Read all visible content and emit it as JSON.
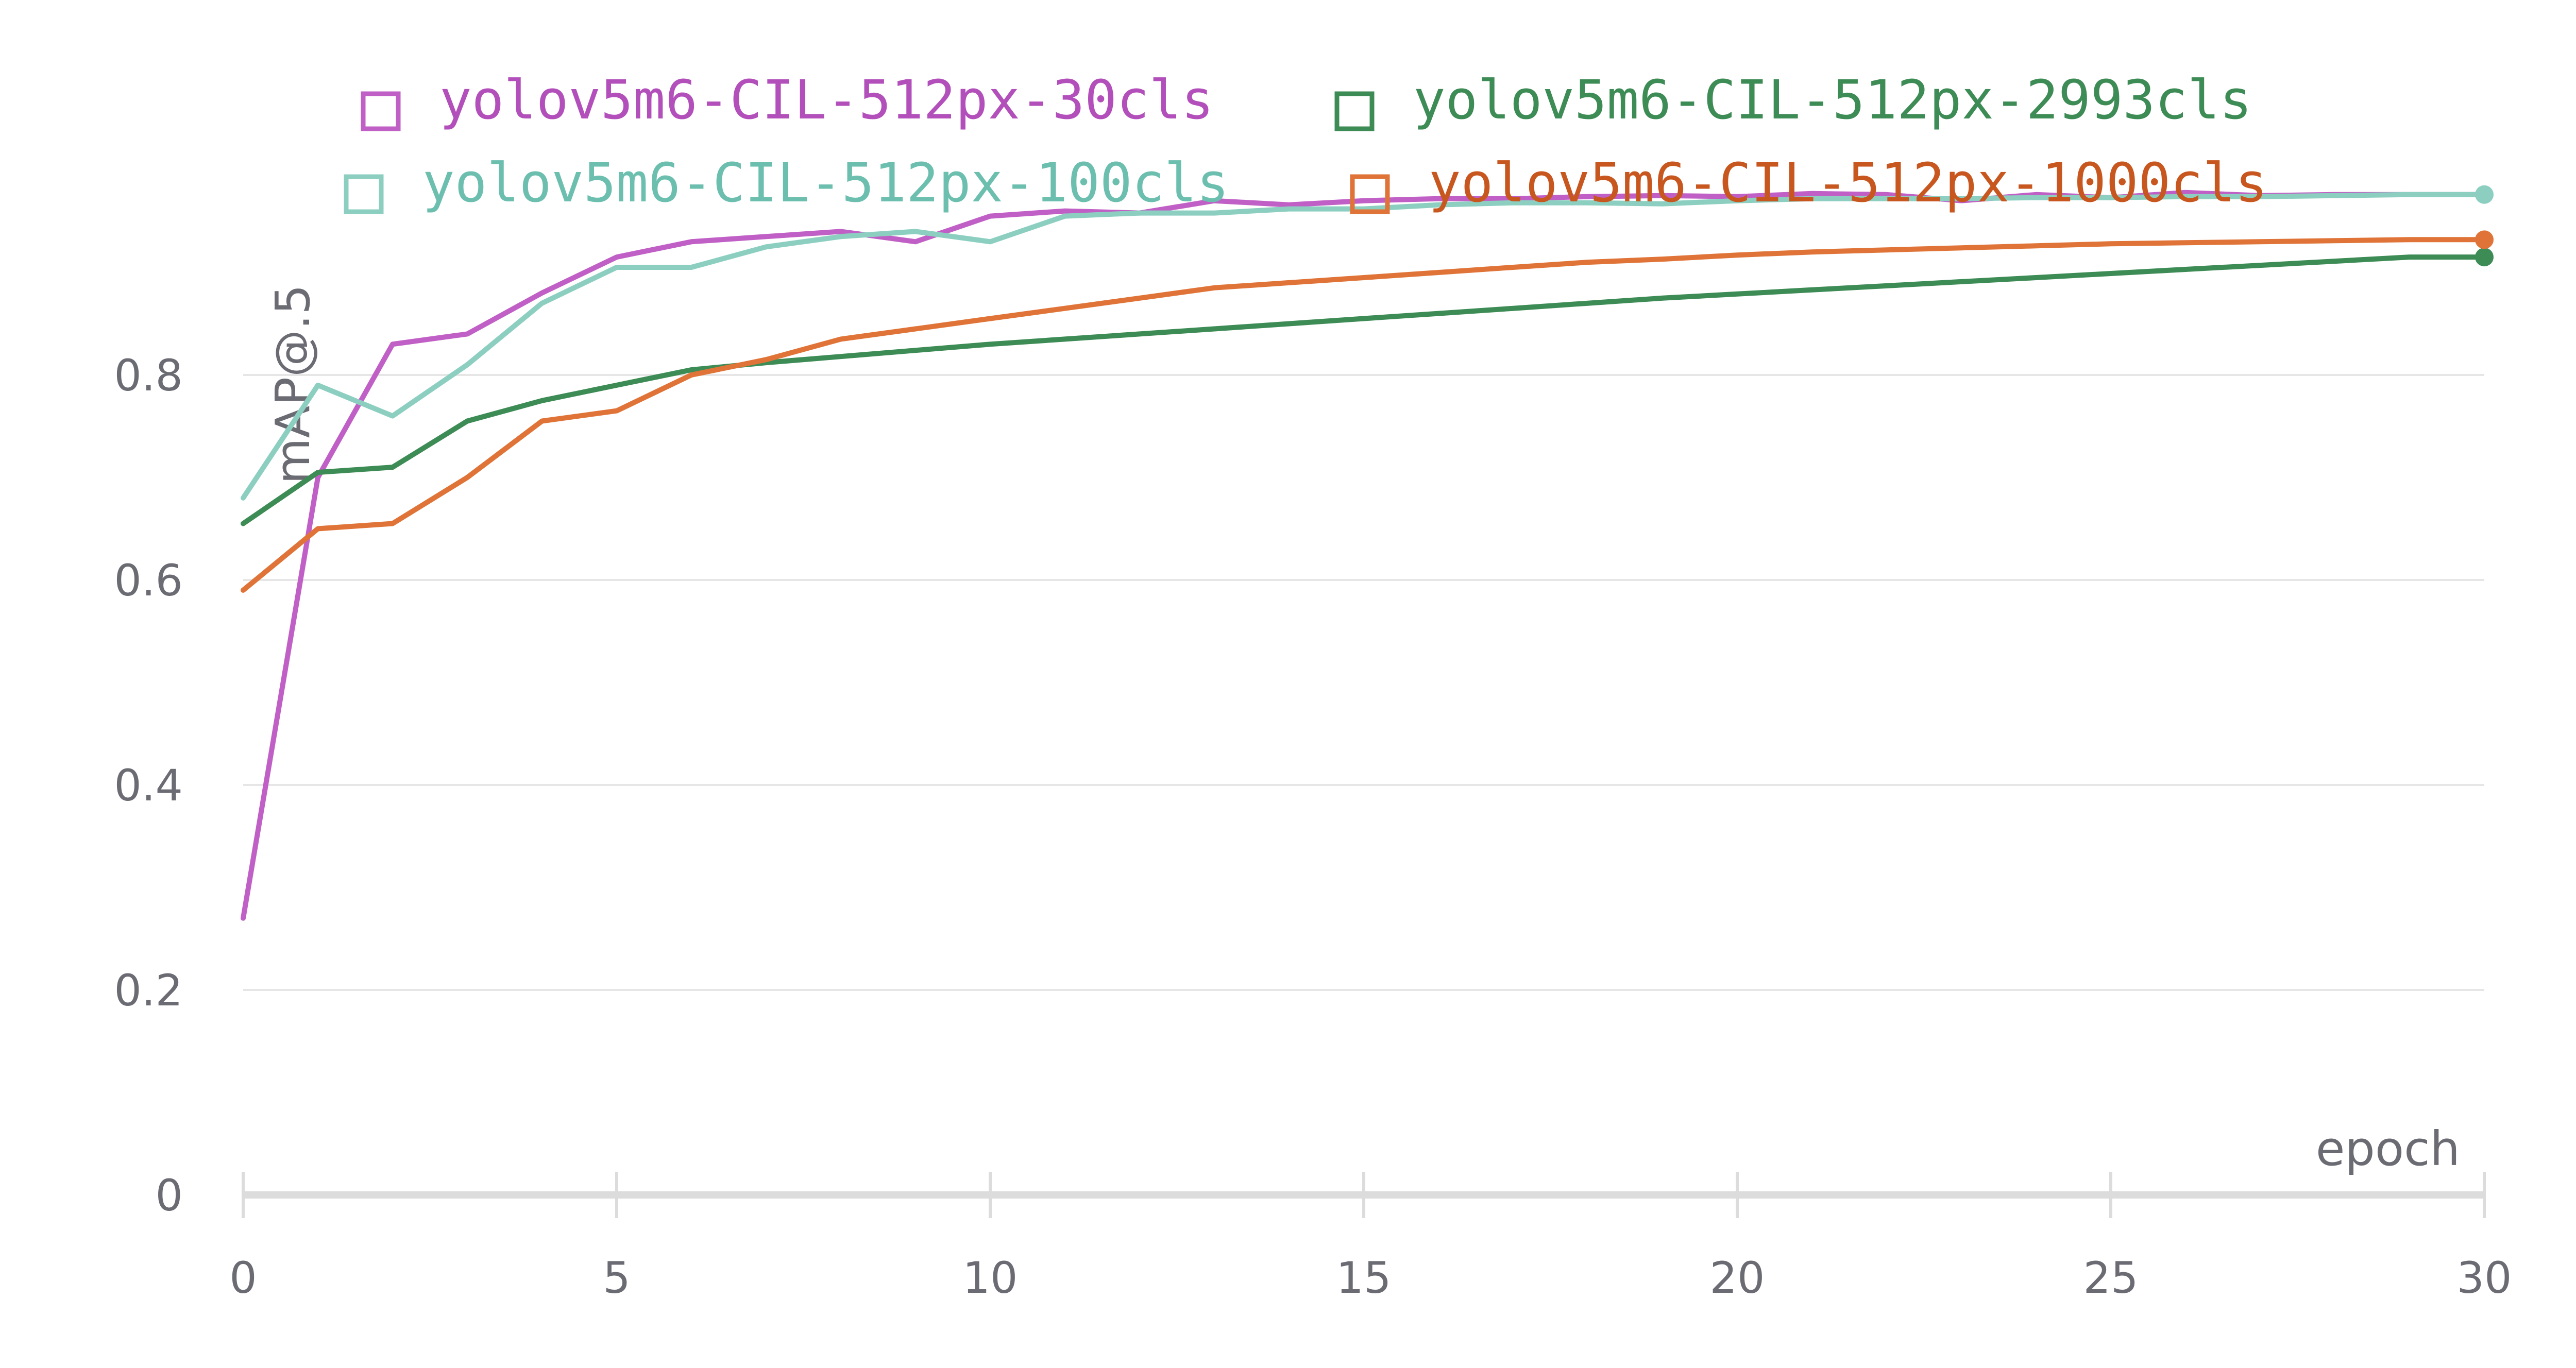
{
  "chart_data": {
    "type": "line",
    "title": "",
    "xlabel": "epoch",
    "ylabel": "mAP@.5",
    "xlim": [
      0,
      30
    ],
    "ylim": [
      0,
      1
    ],
    "xticks": [
      0,
      5,
      10,
      15,
      20,
      25,
      30
    ],
    "xtick_labels": [
      "0",
      "5",
      "10",
      "15",
      "20",
      "25",
      "30"
    ],
    "yticks": [
      0,
      0.2,
      0.4,
      0.6,
      0.8
    ],
    "ytick_labels": [
      "0",
      "0.2",
      "0.4",
      "0.6",
      "0.8"
    ],
    "grid": true,
    "legend_position": "top",
    "x": [
      0,
      1,
      2,
      3,
      4,
      5,
      6,
      7,
      8,
      9,
      10,
      11,
      12,
      13,
      14,
      15,
      16,
      17,
      18,
      19,
      20,
      21,
      22,
      23,
      24,
      25,
      26,
      27,
      28,
      29,
      30
    ],
    "series": [
      {
        "name": "yolov5m6-CIL-512px-30cls",
        "color": "#c05fc5",
        "legend_text_color": "#b24fba",
        "values": [
          0.27,
          0.7,
          0.83,
          0.84,
          0.88,
          0.915,
          0.93,
          0.935,
          0.94,
          0.93,
          0.955,
          0.96,
          0.958,
          0.97,
          0.966,
          0.97,
          0.972,
          0.972,
          0.974,
          0.975,
          0.974,
          0.977,
          0.976,
          0.97,
          0.976,
          0.973,
          0.978,
          0.975,
          0.976,
          0.976,
          0.976
        ],
        "end_marker": false
      },
      {
        "name": "yolov5m6-CIL-512px-2993cls",
        "color": "#3d8b55",
        "legend_text_color": "#3d8b55",
        "values": [
          0.655,
          0.705,
          0.71,
          0.755,
          0.775,
          0.79,
          0.805,
          0.812,
          0.818,
          0.824,
          0.83,
          0.835,
          0.84,
          0.845,
          0.85,
          0.855,
          0.86,
          0.865,
          0.87,
          0.875,
          0.879,
          0.883,
          0.887,
          0.891,
          0.895,
          0.899,
          0.903,
          0.907,
          0.911,
          0.915,
          0.915
        ],
        "end_marker": true
      },
      {
        "name": "yolov5m6-CIL-512px-100cls",
        "color": "#8ccfc1",
        "legend_text_color": "#6cbfae",
        "values": [
          0.68,
          0.79,
          0.76,
          0.81,
          0.87,
          0.905,
          0.905,
          0.925,
          0.935,
          0.94,
          0.93,
          0.955,
          0.958,
          0.958,
          0.962,
          0.962,
          0.966,
          0.968,
          0.968,
          0.967,
          0.97,
          0.972,
          0.972,
          0.972,
          0.973,
          0.973,
          0.974,
          0.974,
          0.975,
          0.976,
          0.976
        ],
        "end_marker": true
      },
      {
        "name": "yolov5m6-CIL-512px-1000cls",
        "color": "#e07438",
        "legend_text_color": "#c8571f",
        "values": [
          0.59,
          0.65,
          0.655,
          0.7,
          0.755,
          0.765,
          0.8,
          0.815,
          0.835,
          0.845,
          0.855,
          0.865,
          0.875,
          0.885,
          0.89,
          0.895,
          0.9,
          0.905,
          0.91,
          0.913,
          0.917,
          0.92,
          0.922,
          0.924,
          0.926,
          0.928,
          0.929,
          0.93,
          0.931,
          0.932,
          0.932
        ],
        "end_marker": true
      }
    ]
  }
}
